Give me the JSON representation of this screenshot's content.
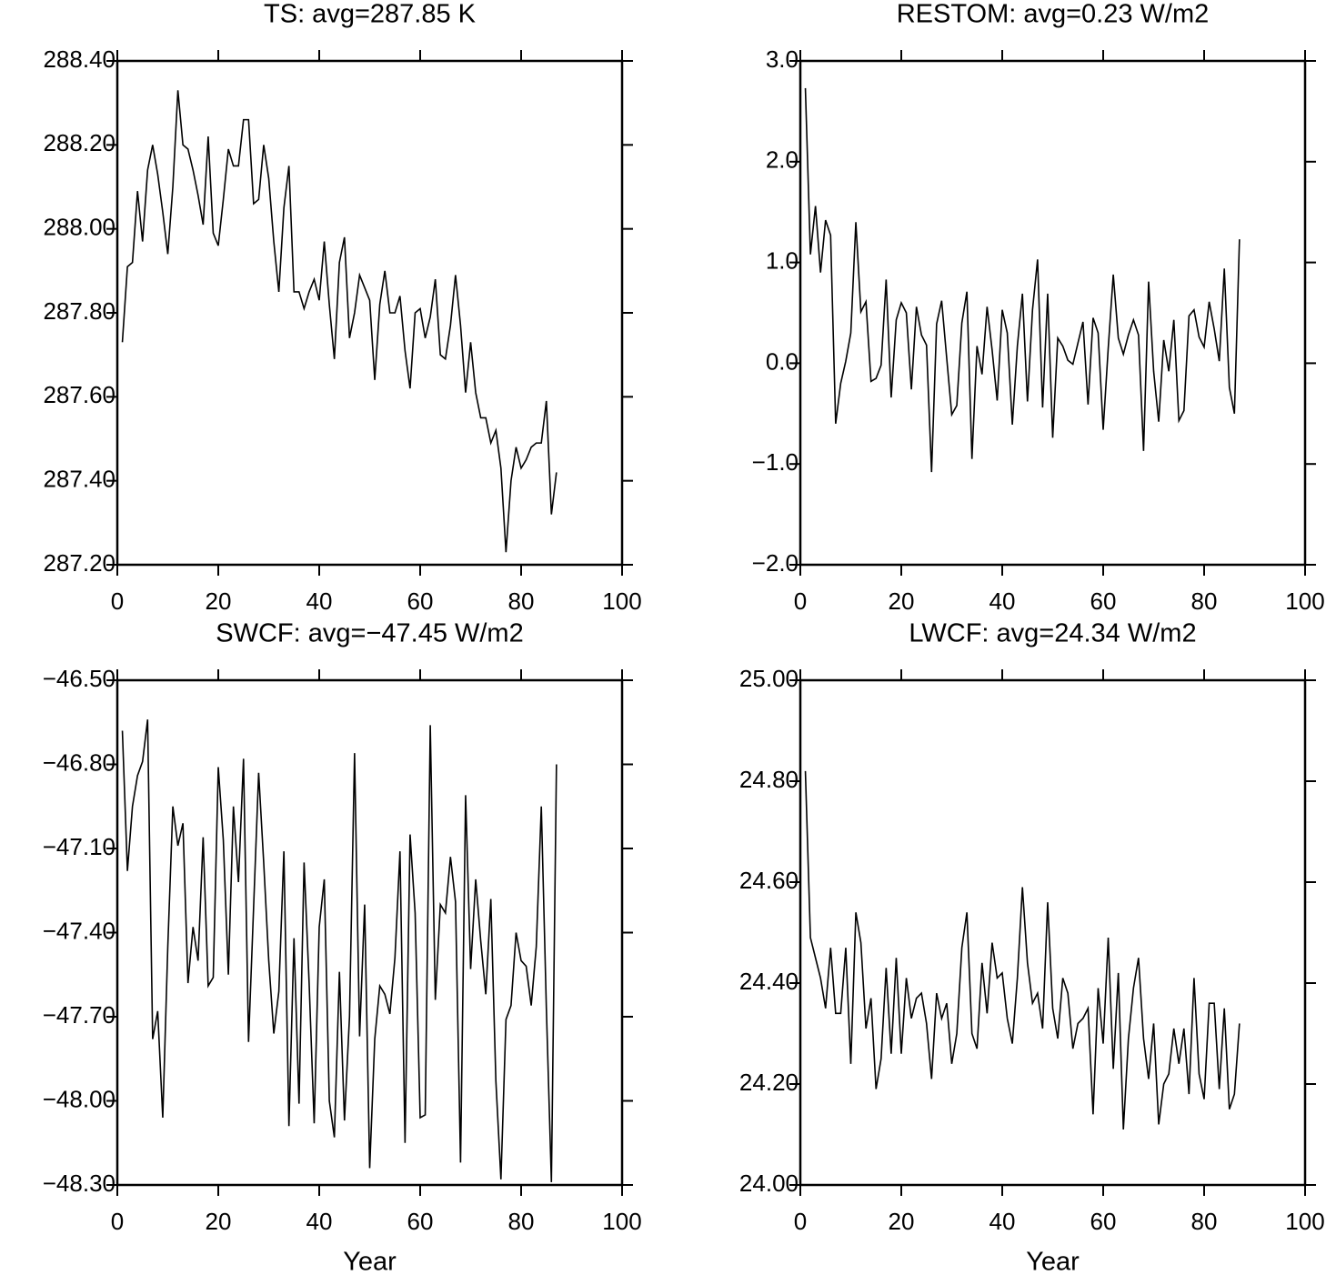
{
  "chart_data": [
    {
      "type": "line",
      "title": "TS: avg=287.85 K",
      "x": [
        1,
        2,
        3,
        4,
        5,
        6,
        7,
        8,
        9,
        10,
        11,
        12,
        13,
        14,
        15,
        16,
        17,
        18,
        19,
        20,
        21,
        22,
        23,
        24,
        25,
        26,
        27,
        28,
        29,
        30,
        31,
        32,
        33,
        34,
        35,
        36,
        37,
        38,
        39,
        40,
        41,
        42,
        43,
        44,
        45,
        46,
        47,
        48,
        49,
        50,
        51,
        52,
        53,
        54,
        55,
        56,
        57,
        58,
        59,
        60,
        61,
        62,
        63,
        64,
        65,
        66,
        67,
        68,
        69,
        70,
        71,
        72,
        73,
        74,
        75,
        76,
        77,
        78,
        79,
        80,
        81,
        82,
        83,
        84,
        85,
        86,
        87
      ],
      "values": [
        287.73,
        287.91,
        287.92,
        288.09,
        287.97,
        288.14,
        288.2,
        288.13,
        288.04,
        287.94,
        288.1,
        288.33,
        288.2,
        288.19,
        288.14,
        288.08,
        288.01,
        288.22,
        287.99,
        287.96,
        288.07,
        288.19,
        288.15,
        288.15,
        288.26,
        288.26,
        288.06,
        288.07,
        288.2,
        288.12,
        287.97,
        287.85,
        288.05,
        288.15,
        287.85,
        287.85,
        287.81,
        287.85,
        287.88,
        287.83,
        287.97,
        287.82,
        287.69,
        287.92,
        287.98,
        287.74,
        287.8,
        287.89,
        287.86,
        287.83,
        287.64,
        287.82,
        287.9,
        287.8,
        287.8,
        287.84,
        287.71,
        287.62,
        287.8,
        287.81,
        287.74,
        287.79,
        287.88,
        287.7,
        287.69,
        287.77,
        287.89,
        287.77,
        287.61,
        287.73,
        287.61,
        287.55,
        287.55,
        287.49,
        287.52,
        287.43,
        287.23,
        287.4,
        287.48,
        287.43,
        287.45,
        287.48,
        287.49,
        287.49,
        287.59,
        287.32,
        287.42
      ],
      "color": "#000000",
      "xlim": [
        0,
        100
      ],
      "xticks": [
        0,
        20,
        40,
        60,
        80,
        100
      ],
      "ylim": [
        287.2,
        288.4
      ],
      "yticks": [
        {
          "value": 287.2,
          "label": "287.20"
        },
        {
          "value": 287.4,
          "label": "287.40"
        },
        {
          "value": 287.6,
          "label": "287.60"
        },
        {
          "value": 287.8,
          "label": "287.80"
        },
        {
          "value": 288.0,
          "label": "288.00"
        },
        {
          "value": 288.2,
          "label": "288.20"
        },
        {
          "value": 288.4,
          "label": "288.40"
        }
      ]
    },
    {
      "type": "line",
      "title": "RESTOM: avg=0.23 W/m2",
      "x": [
        1,
        2,
        3,
        4,
        5,
        6,
        7,
        8,
        9,
        10,
        11,
        12,
        13,
        14,
        15,
        16,
        17,
        18,
        19,
        20,
        21,
        22,
        23,
        24,
        25,
        26,
        27,
        28,
        29,
        30,
        31,
        32,
        33,
        34,
        35,
        36,
        37,
        38,
        39,
        40,
        41,
        42,
        43,
        44,
        45,
        46,
        47,
        48,
        49,
        50,
        51,
        52,
        53,
        54,
        55,
        56,
        57,
        58,
        59,
        60,
        61,
        62,
        63,
        64,
        65,
        66,
        67,
        68,
        69,
        70,
        71,
        72,
        73,
        74,
        75,
        76,
        77,
        78,
        79,
        80,
        81,
        82,
        83,
        84,
        85,
        86,
        87
      ],
      "values": [
        2.73,
        1.08,
        1.56,
        0.9,
        1.42,
        1.27,
        -0.6,
        -0.2,
        0.02,
        0.3,
        1.4,
        0.51,
        0.61,
        -0.18,
        -0.15,
        -0.02,
        0.83,
        -0.34,
        0.43,
        0.6,
        0.5,
        -0.26,
        0.56,
        0.28,
        0.18,
        -1.08,
        0.39,
        0.62,
        0.05,
        -0.51,
        -0.42,
        0.4,
        0.71,
        -0.95,
        0.17,
        -0.11,
        0.56,
        0.13,
        -0.37,
        0.53,
        0.3,
        -0.61,
        0.17,
        0.69,
        -0.38,
        0.53,
        1.03,
        -0.44,
        0.69,
        -0.74,
        0.25,
        0.17,
        0.03,
        -0.01,
        0.2,
        0.41,
        -0.41,
        0.45,
        0.3,
        -0.66,
        0.15,
        0.88,
        0.25,
        0.09,
        0.28,
        0.43,
        0.28,
        -0.87,
        0.81,
        -0.08,
        -0.58,
        0.23,
        -0.08,
        0.43,
        -0.57,
        -0.47,
        0.47,
        0.53,
        0.26,
        0.16,
        0.61,
        0.34,
        0.02,
        0.94,
        -0.24,
        -0.5,
        1.23
      ],
      "color": "#000000",
      "xlim": [
        0,
        100
      ],
      "xticks": [
        0,
        20,
        40,
        60,
        80,
        100
      ],
      "ylim": [
        -2,
        3
      ],
      "yticks": [
        {
          "value": -2,
          "label": "−2.0"
        },
        {
          "value": -1,
          "label": "−1.0"
        },
        {
          "value": 0,
          "label": "0.0"
        },
        {
          "value": 1,
          "label": "1.0"
        },
        {
          "value": 2,
          "label": "2.0"
        },
        {
          "value": 3,
          "label": "3.0"
        }
      ]
    },
    {
      "type": "line",
      "title": "SWCF: avg=−47.45 W/m2",
      "xlabel": "Year",
      "x": [
        1,
        2,
        3,
        4,
        5,
        6,
        7,
        8,
        9,
        10,
        11,
        12,
        13,
        14,
        15,
        16,
        17,
        18,
        19,
        20,
        21,
        22,
        23,
        24,
        25,
        26,
        27,
        28,
        29,
        30,
        31,
        32,
        33,
        34,
        35,
        36,
        37,
        38,
        39,
        40,
        41,
        42,
        43,
        44,
        45,
        46,
        47,
        48,
        49,
        50,
        51,
        52,
        53,
        54,
        55,
        56,
        57,
        58,
        59,
        60,
        61,
        62,
        63,
        64,
        65,
        66,
        67,
        68,
        69,
        70,
        71,
        72,
        73,
        74,
        75,
        76,
        77,
        78,
        79,
        80,
        81,
        82,
        83,
        84,
        85,
        86,
        87
      ],
      "values": [
        -46.68,
        -47.18,
        -46.95,
        -46.84,
        -46.79,
        -46.64,
        -47.78,
        -47.68,
        -48.06,
        -47.45,
        -46.95,
        -47.09,
        -47.01,
        -47.58,
        -47.38,
        -47.5,
        -47.06,
        -47.59,
        -47.56,
        -46.81,
        -47.07,
        -47.55,
        -46.95,
        -47.22,
        -46.78,
        -47.79,
        -47.31,
        -46.83,
        -47.15,
        -47.5,
        -47.76,
        -47.61,
        -47.11,
        -48.09,
        -47.42,
        -48.01,
        -47.15,
        -47.58,
        -48.08,
        -47.38,
        -47.21,
        -48.0,
        -48.13,
        -47.54,
        -48.07,
        -47.7,
        -46.76,
        -47.77,
        -47.3,
        -48.24,
        -47.78,
        -47.59,
        -47.62,
        -47.69,
        -47.49,
        -47.11,
        -48.15,
        -47.05,
        -47.33,
        -48.06,
        -48.05,
        -46.66,
        -47.64,
        -47.3,
        -47.33,
        -47.13,
        -47.29,
        -48.22,
        -46.91,
        -47.53,
        -47.21,
        -47.43,
        -47.62,
        -47.28,
        -47.93,
        -48.28,
        -47.71,
        -47.66,
        -47.4,
        -47.5,
        -47.52,
        -47.66,
        -47.45,
        -46.95,
        -47.67,
        -48.29,
        -46.8
      ],
      "color": "#000000",
      "xlim": [
        0,
        100
      ],
      "xticks": [
        0,
        20,
        40,
        60,
        80,
        100
      ],
      "ylim": [
        -48.3,
        -46.5
      ],
      "yticks": [
        {
          "value": -48.3,
          "label": "−48.30"
        },
        {
          "value": -48.0,
          "label": "−48.00"
        },
        {
          "value": -47.7,
          "label": "−47.70"
        },
        {
          "value": -47.4,
          "label": "−47.40"
        },
        {
          "value": -47.1,
          "label": "−47.10"
        },
        {
          "value": -46.8,
          "label": "−46.80"
        },
        {
          "value": -46.5,
          "label": "−46.50"
        }
      ]
    },
    {
      "type": "line",
      "title": "LWCF: avg=24.34 W/m2",
      "xlabel": "Year",
      "x": [
        1,
        2,
        3,
        4,
        5,
        6,
        7,
        8,
        9,
        10,
        11,
        12,
        13,
        14,
        15,
        16,
        17,
        18,
        19,
        20,
        21,
        22,
        23,
        24,
        25,
        26,
        27,
        28,
        29,
        30,
        31,
        32,
        33,
        34,
        35,
        36,
        37,
        38,
        39,
        40,
        41,
        42,
        43,
        44,
        45,
        46,
        47,
        48,
        49,
        50,
        51,
        52,
        53,
        54,
        55,
        56,
        57,
        58,
        59,
        60,
        61,
        62,
        63,
        64,
        65,
        66,
        67,
        68,
        69,
        70,
        71,
        72,
        73,
        74,
        75,
        76,
        77,
        78,
        79,
        80,
        81,
        82,
        83,
        84,
        85,
        86,
        87
      ],
      "values": [
        24.82,
        24.49,
        24.45,
        24.41,
        24.35,
        24.47,
        24.34,
        24.34,
        24.47,
        24.24,
        24.54,
        24.48,
        24.31,
        24.37,
        24.19,
        24.25,
        24.43,
        24.26,
        24.45,
        24.26,
        24.41,
        24.33,
        24.37,
        24.38,
        24.32,
        24.21,
        24.38,
        24.33,
        24.36,
        24.24,
        24.3,
        24.47,
        24.54,
        24.3,
        24.27,
        24.44,
        24.34,
        24.48,
        24.41,
        24.42,
        24.33,
        24.28,
        24.41,
        24.59,
        24.44,
        24.36,
        24.38,
        24.31,
        24.56,
        24.35,
        24.29,
        24.41,
        24.38,
        24.27,
        24.32,
        24.33,
        24.35,
        24.14,
        24.39,
        24.28,
        24.49,
        24.23,
        24.42,
        24.11,
        24.29,
        24.39,
        24.45,
        24.29,
        24.21,
        24.32,
        24.12,
        24.2,
        24.22,
        24.31,
        24.24,
        24.31,
        24.18,
        24.41,
        24.22,
        24.17,
        24.36,
        24.36,
        24.19,
        24.35,
        24.15,
        24.18,
        24.32
      ],
      "color": "#000000",
      "xlim": [
        0,
        100
      ],
      "xticks": [
        0,
        20,
        40,
        60,
        80,
        100
      ],
      "ylim": [
        24.0,
        25.0
      ],
      "yticks": [
        {
          "value": 24.0,
          "label": "24.00"
        },
        {
          "value": 24.2,
          "label": "24.20"
        },
        {
          "value": 24.4,
          "label": "24.40"
        },
        {
          "value": 24.6,
          "label": "24.60"
        },
        {
          "value": 24.8,
          "label": "24.80"
        },
        {
          "value": 25.0,
          "label": "25.00"
        }
      ]
    }
  ]
}
